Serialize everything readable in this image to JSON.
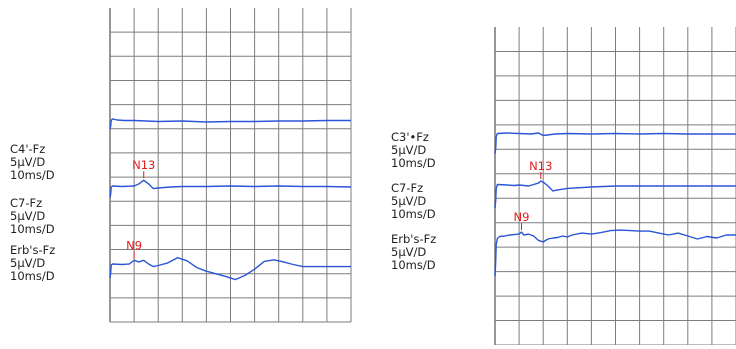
{
  "colors": {
    "grid": "#7d7d7d",
    "trace": "#2a55d6",
    "marker": "#e31b1b",
    "text": "#222222"
  },
  "chart_data": [
    {
      "type": "line",
      "x_unit": "ms",
      "y_unit": "μV",
      "grid": true,
      "channels": [
        {
          "name": "C4'-Fz",
          "sensitivity": "5μV/D",
          "sweep": "10ms/D",
          "x": [
            0,
            0.3,
            0.5,
            1,
            3,
            6,
            10,
            20,
            30,
            40,
            50,
            60,
            70,
            80,
            90,
            100
          ],
          "y": [
            -1.5,
            -1.0,
            0.1,
            0.4,
            0.2,
            0.1,
            0.1,
            -0.1,
            0.0,
            -0.2,
            -0.1,
            -0.1,
            0.0,
            0.0,
            0.1,
            0.1
          ],
          "markers": []
        },
        {
          "name": "C7-Fz",
          "sensitivity": "5μV/D",
          "sweep": "10ms/D",
          "x": [
            0,
            0.3,
            0.5,
            1,
            5,
            10,
            12,
            14,
            16,
            18,
            20,
            25,
            30,
            40,
            50,
            60,
            70,
            80,
            90,
            100
          ],
          "y": [
            -2.0,
            -1.4,
            0.0,
            0.2,
            0.1,
            0.2,
            0.6,
            1.3,
            0.6,
            -0.3,
            -0.2,
            0.0,
            0.1,
            0.1,
            0.2,
            0.1,
            0.2,
            0.1,
            0.1,
            0.0
          ],
          "markers": [
            {
              "label": "N13",
              "x": 14
            }
          ]
        },
        {
          "name": "Erb's-Fz",
          "sensitivity": "5μV/D",
          "sweep": "10ms/D",
          "x": [
            0,
            0.3,
            0.5,
            1,
            5,
            8,
            10,
            12,
            14,
            16,
            18,
            20,
            24,
            28,
            32,
            36,
            40,
            44,
            48,
            52,
            56,
            60,
            64,
            68,
            72,
            76,
            80,
            84,
            88,
            92,
            96,
            100
          ],
          "y": [
            -2.5,
            -1.5,
            0.0,
            0.2,
            0.1,
            0.2,
            0.9,
            0.6,
            0.9,
            0.2,
            -0.3,
            -0.1,
            0.4,
            1.4,
            0.8,
            -0.5,
            -1.2,
            -1.7,
            -2.2,
            -2.8,
            -2.0,
            -0.8,
            0.7,
            1.0,
            0.6,
            0.1,
            -0.3,
            -0.3,
            -0.3,
            -0.3,
            -0.3,
            -0.3
          ],
          "markers": [
            {
              "label": "N9",
              "x": 10
            }
          ]
        }
      ]
    },
    {
      "type": "line",
      "x_unit": "ms",
      "y_unit": "μV",
      "grid": true,
      "channels": [
        {
          "name": "C3'•Fz",
          "sensitivity": "5μV/D",
          "sweep": "10ms/D",
          "x": [
            0,
            0.3,
            0.5,
            1,
            5,
            10,
            15,
            18,
            20,
            25,
            30,
            40,
            50,
            60,
            70,
            80,
            90,
            100
          ],
          "y": [
            -4.0,
            -3.0,
            -0.5,
            0.1,
            0.2,
            0.1,
            0.0,
            0.2,
            -0.3,
            0.0,
            0.1,
            0.0,
            0.1,
            0.0,
            0.1,
            0.0,
            0.0,
            0.0
          ],
          "markers": []
        },
        {
          "name": "C7-Fz",
          "sensitivity": "5μV/D",
          "sweep": "10ms/D",
          "x": [
            0,
            0.3,
            0.5,
            1,
            5,
            8,
            10,
            14,
            16,
            18,
            19,
            20,
            22,
            24,
            26,
            30,
            40,
            50,
            60,
            70,
            80,
            90,
            100
          ],
          "y": [
            -4.5,
            -3.0,
            -0.5,
            0.3,
            0.2,
            0.1,
            0.2,
            0.0,
            0.3,
            0.6,
            1.0,
            0.8,
            0.0,
            -1.0,
            -0.8,
            -0.5,
            -0.2,
            0.0,
            0.0,
            0.0,
            0.0,
            0.0,
            0.0
          ],
          "markers": [
            {
              "label": "N13",
              "x": 19
            }
          ]
        },
        {
          "name": "Erb's-Fz",
          "sensitivity": "5μV/D",
          "sweep": "10ms/D",
          "x": [
            0,
            0.3,
            0.5,
            1,
            2,
            4,
            6,
            8,
            10,
            11,
            12,
            14,
            16,
            18,
            20,
            22,
            24,
            26,
            28,
            30,
            32,
            36,
            40,
            44,
            48,
            52,
            56,
            60,
            64,
            68,
            72,
            76,
            80,
            84,
            88,
            92,
            96,
            100
          ],
          "y": [
            -8.0,
            -5.0,
            -1.5,
            -0.3,
            0.1,
            0.2,
            0.4,
            0.5,
            0.6,
            1.0,
            0.4,
            0.6,
            0.2,
            -0.7,
            -1.0,
            -0.4,
            -0.2,
            -0.1,
            0.2,
            0.0,
            0.4,
            0.8,
            0.6,
            0.9,
            1.3,
            1.4,
            1.3,
            1.2,
            1.2,
            0.8,
            0.4,
            0.8,
            0.2,
            -0.4,
            0.1,
            -0.2,
            0.4,
            0.4
          ],
          "markers": [
            {
              "label": "N9",
              "x": 11
            }
          ]
        }
      ]
    }
  ]
}
